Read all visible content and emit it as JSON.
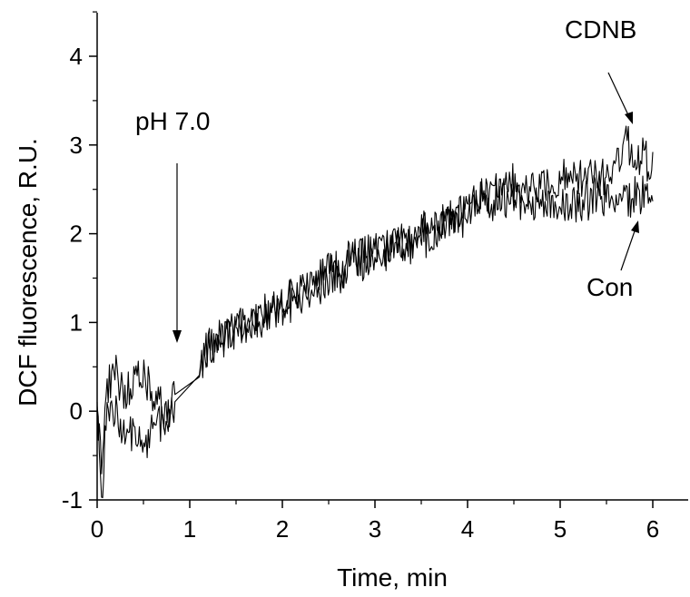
{
  "chart_data": {
    "type": "line",
    "title": "",
    "xlabel": "Time, min",
    "ylabel": "DCF fluorescence, R.U.",
    "xlim": [
      0,
      6.4
    ],
    "ylim": [
      -1,
      4.5
    ],
    "grid": false,
    "x_ticks": [
      0,
      1,
      2,
      3,
      4,
      5,
      6
    ],
    "y_ticks": [
      -1,
      0,
      1,
      2,
      3,
      4
    ],
    "x_tick_labels": [
      "0",
      "1",
      "2",
      "3",
      "4",
      "5",
      "6"
    ],
    "y_tick_labels": [
      "-1",
      "0",
      "1",
      "2",
      "3",
      "4"
    ],
    "series": [
      {
        "name": "CDNB",
        "x": [
          0,
          0.05,
          0.1,
          0.2,
          0.3,
          0.4,
          0.5,
          0.6,
          0.7,
          0.8,
          0.85,
          1.1,
          1.2,
          1.4,
          1.6,
          1.8,
          2.0,
          2.2,
          2.4,
          2.6,
          2.8,
          3.0,
          3.2,
          3.4,
          3.6,
          3.8,
          4.0,
          4.2,
          4.4,
          4.6,
          4.8,
          5.0,
          5.2,
          5.4,
          5.5,
          5.6,
          5.7,
          5.8,
          5.9,
          6.0
        ],
        "y": [
          0.0,
          -0.6,
          0.25,
          0.4,
          0.25,
          0.3,
          0.35,
          0.15,
          0.05,
          0.0,
          0.25,
          0.55,
          0.7,
          0.85,
          1.0,
          1.1,
          1.2,
          1.35,
          1.5,
          1.6,
          1.75,
          1.8,
          1.9,
          1.95,
          2.05,
          2.15,
          2.3,
          2.45,
          2.5,
          2.55,
          2.55,
          2.6,
          2.65,
          2.6,
          2.7,
          2.75,
          3.1,
          2.85,
          2.9,
          2.8
        ]
      },
      {
        "name": "Con",
        "x": [
          0,
          0.05,
          0.1,
          0.2,
          0.3,
          0.4,
          0.5,
          0.6,
          0.7,
          0.8,
          0.85,
          1.0,
          1.1,
          1.2,
          1.4,
          1.6,
          1.8,
          2.0,
          2.2,
          2.4,
          2.6,
          2.8,
          3.0,
          3.2,
          3.4,
          3.6,
          3.8,
          4.0,
          4.2,
          4.4,
          4.6,
          4.8,
          5.0,
          5.2,
          5.4,
          5.5,
          5.6,
          5.7,
          5.8,
          5.9,
          6.0
        ],
        "y": [
          0.0,
          -1.0,
          -0.1,
          0.0,
          -0.2,
          -0.3,
          -0.35,
          -0.25,
          -0.1,
          0.0,
          0.0,
          -0.2,
          0.45,
          0.7,
          0.85,
          1.0,
          1.1,
          1.2,
          1.3,
          1.45,
          1.55,
          1.7,
          1.75,
          1.85,
          1.9,
          2.0,
          2.1,
          2.25,
          2.35,
          2.4,
          2.4,
          2.35,
          2.3,
          2.35,
          2.45,
          2.4,
          2.4,
          2.35,
          2.4,
          2.45,
          2.5
        ]
      }
    ],
    "annotations": [
      {
        "text": "pH 7.0",
        "arrow_x": 0.87,
        "arrow_y_from": 2.8,
        "arrow_y_to": 0.75
      },
      {
        "text": "CDNB",
        "arrow_to_x": 5.82,
        "arrow_to_y": 3.22
      },
      {
        "text": "Con",
        "arrow_to_x": 5.93,
        "arrow_to_y": 2.15
      }
    ]
  }
}
